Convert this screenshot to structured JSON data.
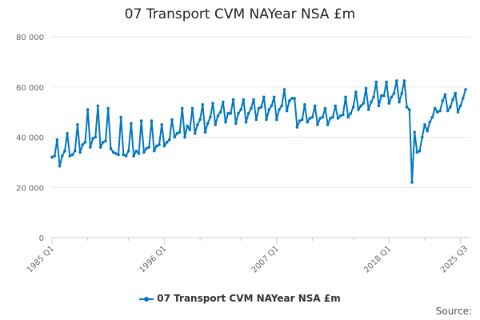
{
  "chart_data": {
    "type": "line",
    "title": "07 Transport CVM NAYear NSA £m",
    "xlabel": "",
    "ylabel": "",
    "ylim": [
      0,
      80000
    ],
    "yticks": [
      0,
      20000,
      40000,
      60000,
      80000
    ],
    "ytick_labels": [
      "0",
      "20 000",
      "40 000",
      "60 000",
      "80 000"
    ],
    "x_start": "1985 Q1",
    "x_end": "2025 Q3",
    "xtick_labels": [
      {
        "label": "1985 Q1",
        "index": 0
      },
      {
        "label": "1996 Q1",
        "index": 44
      },
      {
        "label": "2007 Q1",
        "index": 88
      },
      {
        "label": "2018 Q1",
        "index": 132
      },
      {
        "label": "2025 Q3",
        "index": 162
      }
    ],
    "grid": true,
    "legend_position": "bottom",
    "series": [
      {
        "name": "07 Transport CVM NAYear NSA £m",
        "color": "#0077c0",
        "values": [
          32000,
          32500,
          39000,
          28500,
          32500,
          34500,
          41500,
          32500,
          33000,
          34500,
          45000,
          34000,
          37000,
          38000,
          51000,
          36000,
          39500,
          40000,
          52500,
          36000,
          38000,
          38500,
          51500,
          35500,
          34000,
          33500,
          33000,
          48000,
          33000,
          32500,
          34500,
          45500,
          32500,
          34500,
          33500,
          46500,
          34000,
          35500,
          36000,
          46500,
          34500,
          36500,
          37000,
          45000,
          36500,
          38000,
          39000,
          47000,
          40000,
          41500,
          42000,
          51500,
          40000,
          44500,
          43000,
          51500,
          41500,
          45000,
          47000,
          53000,
          42000,
          45500,
          48000,
          53500,
          45000,
          48500,
          50000,
          54000,
          46000,
          49500,
          49500,
          55000,
          45500,
          49500,
          51000,
          55000,
          46000,
          49500,
          51500,
          55000,
          47000,
          51500,
          52000,
          56000,
          47000,
          51000,
          52500,
          56000,
          47000,
          51000,
          52500,
          59000,
          50500,
          54500,
          55500,
          55500,
          44000,
          46500,
          47000,
          53000,
          46000,
          47500,
          48000,
          52500,
          45000,
          47500,
          48000,
          51500,
          45000,
          47500,
          48000,
          52500,
          47500,
          48500,
          49000,
          56000,
          48000,
          49500,
          52000,
          58000,
          51000,
          52500,
          53500,
          59500,
          51000,
          54000,
          56000,
          62000,
          52500,
          56500,
          56500,
          62000,
          53500,
          56000,
          57500,
          62500,
          54000,
          57500,
          62500,
          52000,
          51000,
          22000,
          42000,
          34000,
          34500,
          40000,
          45000,
          42500,
          46000,
          48000,
          51500,
          50000,
          50500,
          54500,
          57000,
          50500,
          52000,
          55000,
          57500,
          50000,
          52500,
          55500,
          59000
        ]
      }
    ],
    "source_label": "Source:"
  }
}
